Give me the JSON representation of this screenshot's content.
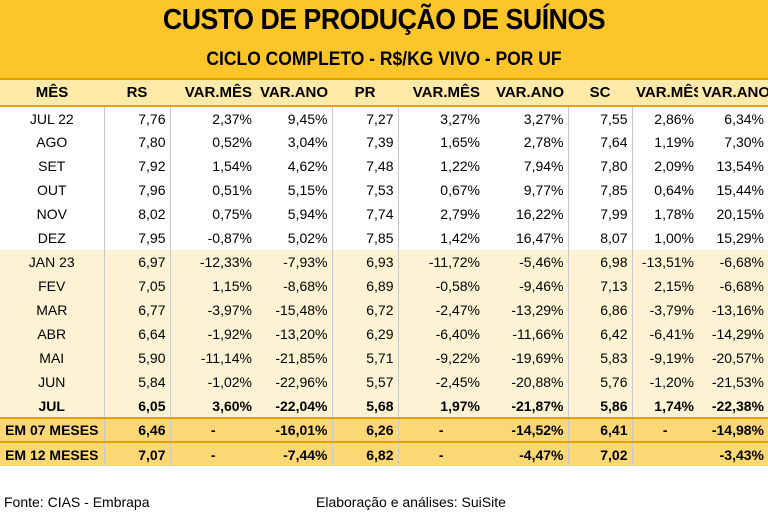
{
  "title": "CUSTO DE PRODUÇÃO DE SUÍNOS",
  "subtitle": "CICLO COMPLETO - R$/KG VIVO - POR UF",
  "columns": [
    "MÊS",
    "RS",
    "VAR.MÊS",
    "VAR.ANO",
    "PR",
    "VAR.MÊS",
    "VAR.ANO",
    "SC",
    "VAR.MÊS",
    "VAR.ANO"
  ],
  "rows": [
    {
      "mes": "JUL 22",
      "rs": "7,76",
      "rs_vm": "2,37%",
      "rs_va": "9,45%",
      "pr": "7,27",
      "pr_vm": "3,27%",
      "pr_va": "3,27%",
      "sc": "7,55",
      "sc_vm": "2,86%",
      "sc_va": "6,34%"
    },
    {
      "mes": "AGO",
      "rs": "7,80",
      "rs_vm": "0,52%",
      "rs_va": "3,04%",
      "pr": "7,39",
      "pr_vm": "1,65%",
      "pr_va": "2,78%",
      "sc": "7,64",
      "sc_vm": "1,19%",
      "sc_va": "7,30%"
    },
    {
      "mes": "SET",
      "rs": "7,92",
      "rs_vm": "1,54%",
      "rs_va": "4,62%",
      "pr": "7,48",
      "pr_vm": "1,22%",
      "pr_va": "7,94%",
      "sc": "7,80",
      "sc_vm": "2,09%",
      "sc_va": "13,54%"
    },
    {
      "mes": "OUT",
      "rs": "7,96",
      "rs_vm": "0,51%",
      "rs_va": "5,15%",
      "pr": "7,53",
      "pr_vm": "0,67%",
      "pr_va": "9,77%",
      "sc": "7,85",
      "sc_vm": "0,64%",
      "sc_va": "15,44%"
    },
    {
      "mes": "NOV",
      "rs": "8,02",
      "rs_vm": "0,75%",
      "rs_va": "5,94%",
      "pr": "7,74",
      "pr_vm": "2,79%",
      "pr_va": "16,22%",
      "sc": "7,99",
      "sc_vm": "1,78%",
      "sc_va": "20,15%"
    },
    {
      "mes": "DEZ",
      "rs": "7,95",
      "rs_vm": "-0,87%",
      "rs_va": "5,02%",
      "pr": "7,85",
      "pr_vm": "1,42%",
      "pr_va": "16,47%",
      "sc": "8,07",
      "sc_vm": "1,00%",
      "sc_va": "15,29%"
    },
    {
      "mes": "JAN 23",
      "rs": "6,97",
      "rs_vm": "-12,33%",
      "rs_va": "-7,93%",
      "pr": "6,93",
      "pr_vm": "-11,72%",
      "pr_va": "-5,46%",
      "sc": "6,98",
      "sc_vm": "-13,51%",
      "sc_va": "-6,68%"
    },
    {
      "mes": "FEV",
      "rs": "7,05",
      "rs_vm": "1,15%",
      "rs_va": "-8,68%",
      "pr": "6,89",
      "pr_vm": "-0,58%",
      "pr_va": "-9,46%",
      "sc": "7,13",
      "sc_vm": "2,15%",
      "sc_va": "-6,68%"
    },
    {
      "mes": "MAR",
      "rs": "6,77",
      "rs_vm": "-3,97%",
      "rs_va": "-15,48%",
      "pr": "6,72",
      "pr_vm": "-2,47%",
      "pr_va": "-13,29%",
      "sc": "6,86",
      "sc_vm": "-3,79%",
      "sc_va": "-13,16%"
    },
    {
      "mes": "ABR",
      "rs": "6,64",
      "rs_vm": "-1,92%",
      "rs_va": "-13,20%",
      "pr": "6,29",
      "pr_vm": "-6,40%",
      "pr_va": "-11,66%",
      "sc": "6,42",
      "sc_vm": "-6,41%",
      "sc_va": "-14,29%"
    },
    {
      "mes": "MAI",
      "rs": "5,90",
      "rs_vm": "-11,14%",
      "rs_va": "-21,85%",
      "pr": "5,71",
      "pr_vm": "-9,22%",
      "pr_va": "-19,69%",
      "sc": "5,83",
      "sc_vm": "-9,19%",
      "sc_va": "-20,57%"
    },
    {
      "mes": "JUN",
      "rs": "5,84",
      "rs_vm": "-1,02%",
      "rs_va": "-22,96%",
      "pr": "5,57",
      "pr_vm": "-2,45%",
      "pr_va": "-20,88%",
      "sc": "5,76",
      "sc_vm": "-1,20%",
      "sc_va": "-21,53%"
    },
    {
      "mes": "JUL",
      "rs": "6,05",
      "rs_vm": "3,60%",
      "rs_va": "-22,04%",
      "pr": "5,68",
      "pr_vm": "1,97%",
      "pr_va": "-21,87%",
      "sc": "5,86",
      "sc_vm": "1,74%",
      "sc_va": "-22,38%"
    }
  ],
  "summary": [
    {
      "mes": "EM 07 MESES",
      "rs": "6,46",
      "rs_vm": "-",
      "rs_va": "-16,01%",
      "pr": "6,26",
      "pr_vm": "-",
      "pr_va": "-14,52%",
      "sc": "6,41",
      "sc_vm": "-",
      "sc_va": "-14,98%"
    },
    {
      "mes": "EM 12 MESES",
      "rs": "7,07",
      "rs_vm": "-",
      "rs_va": "-7,44%",
      "pr": "6,82",
      "pr_vm": "-",
      "pr_va": "-4,47%",
      "sc": "7,02",
      "sc_vm": "",
      "sc_va": "-3,43%"
    }
  ],
  "footer": {
    "source": "Fonte: CIAS - Embrapa",
    "credit": "Elaboração e análises: SuiSite"
  },
  "colors": {
    "header_bg": "#fcc62b",
    "column_header_bg": "#fde9a8",
    "year_2023_bg": "#fdf3d4",
    "summary_bg": "#fcd874"
  }
}
